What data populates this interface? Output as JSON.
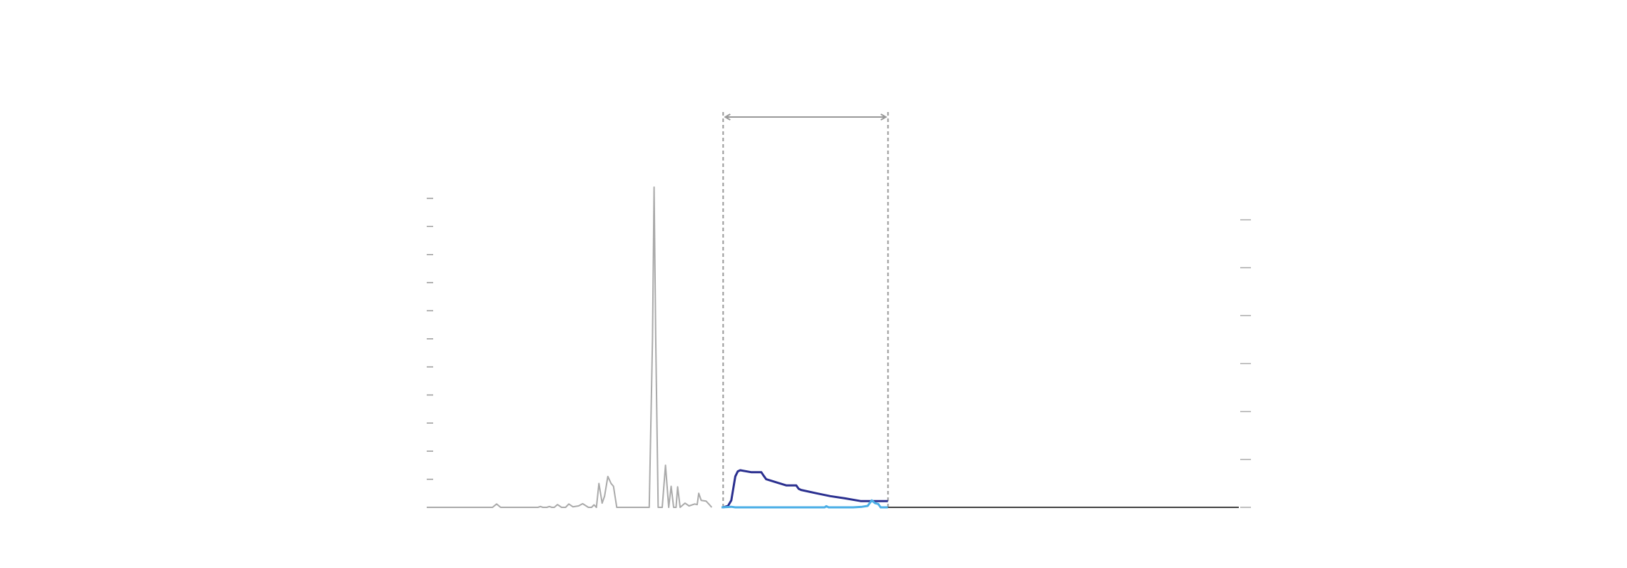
{
  "chart_data": {
    "type": "line",
    "title": "",
    "xlabel": "",
    "ylabel": "",
    "x_range": [
      0,
      100
    ],
    "y_range": [
      0,
      11
    ],
    "y_ticks": [
      0,
      1,
      2,
      3,
      4,
      5,
      6,
      7,
      8,
      9,
      10,
      11
    ],
    "y2_range": [
      0,
      6
    ],
    "y2_ticks": [
      0,
      1,
      2,
      3,
      4,
      5,
      6
    ],
    "grid": false,
    "legend": "none",
    "highlight_region": {
      "x_start": 36.5,
      "x_end": 56.8,
      "arrow": "double-headed",
      "style": "dashed"
    },
    "series": [
      {
        "color": "#aaaaaa",
        "points": [
          [
            0,
            0
          ],
          [
            8.1,
            0
          ],
          [
            8.6,
            0.12
          ],
          [
            9.1,
            0
          ],
          [
            13.7,
            0
          ],
          [
            14,
            0.03
          ],
          [
            14.3,
            0
          ],
          [
            14.8,
            0
          ],
          [
            15.1,
            0.03
          ],
          [
            15.4,
            0
          ],
          [
            15.7,
            0
          ],
          [
            16.1,
            0.1
          ],
          [
            16.6,
            0
          ],
          [
            17.1,
            0
          ],
          [
            17.5,
            0.12
          ],
          [
            18,
            0.02
          ],
          [
            18.7,
            0.05
          ],
          [
            19.2,
            0.13
          ],
          [
            19.9,
            0
          ],
          [
            20.3,
            0
          ],
          [
            20.6,
            0.09
          ],
          [
            20.9,
            0
          ],
          [
            21.2,
            0.85
          ],
          [
            21.6,
            0.15
          ],
          [
            21.9,
            0.4
          ],
          [
            22.3,
            1.1
          ],
          [
            22.7,
            0.85
          ],
          [
            23,
            0.75
          ],
          [
            23.4,
            0
          ],
          [
            27.4,
            0
          ],
          [
            27.8,
            6
          ],
          [
            28,
            11.4
          ],
          [
            28.2,
            6
          ],
          [
            28.5,
            0
          ],
          [
            29.0,
            0
          ],
          [
            29.4,
            1.5
          ],
          [
            29.8,
            0
          ],
          [
            30.1,
            0.75
          ],
          [
            30.4,
            0
          ],
          [
            30.7,
            0
          ],
          [
            30.9,
            0.73
          ],
          [
            31.2,
            0
          ],
          [
            31.8,
            0.15
          ],
          [
            32.3,
            0.05
          ],
          [
            33,
            0.12
          ],
          [
            33.3,
            0.1
          ],
          [
            33.5,
            0.5
          ],
          [
            33.8,
            0.25
          ],
          [
            34.4,
            0.22
          ],
          [
            34.8,
            0.1
          ],
          [
            35.1,
            0
          ]
        ]
      },
      {
        "color": "#2a2f8f",
        "points": [
          [
            36.5,
            0
          ],
          [
            37.1,
            0.05
          ],
          [
            37.5,
            0.25
          ],
          [
            38.0,
            1.1
          ],
          [
            38.3,
            1.28
          ],
          [
            38.6,
            1.32
          ],
          [
            40,
            1.25
          ],
          [
            41.2,
            1.25
          ],
          [
            41.5,
            1.12
          ],
          [
            41.8,
            1.0
          ],
          [
            44.3,
            0.78
          ],
          [
            45.5,
            0.78
          ],
          [
            45.8,
            0.66
          ],
          [
            46.1,
            0.62
          ],
          [
            48,
            0.5
          ],
          [
            49.7,
            0.4
          ],
          [
            51.5,
            0.32
          ],
          [
            53.5,
            0.22
          ],
          [
            56.8,
            0.22
          ]
        ]
      },
      {
        "color": "#4aaee6",
        "points": [
          [
            36.3,
            0
          ],
          [
            37.5,
            0.02
          ],
          [
            38,
            0
          ],
          [
            49,
            0
          ],
          [
            49.2,
            0.04
          ],
          [
            49.5,
            0
          ],
          [
            52.5,
            0
          ],
          [
            53.6,
            0.02
          ],
          [
            54.3,
            0.05
          ],
          [
            54.8,
            0.25
          ],
          [
            55.2,
            0.15
          ],
          [
            55.6,
            0.12
          ],
          [
            55.9,
            0
          ],
          [
            56.8,
            0
          ]
        ]
      },
      {
        "color": "#444444",
        "points": [
          [
            56.8,
            0
          ],
          [
            100,
            0
          ]
        ]
      }
    ]
  }
}
